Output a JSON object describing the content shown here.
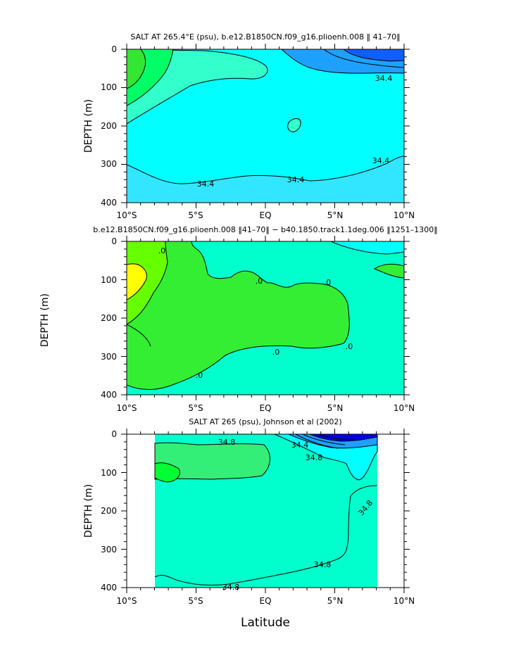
{
  "figure": {
    "xlabel": "Latitude"
  },
  "chart_data": [
    {
      "type": "contour",
      "title": "SALT AT 265.4°E (psu), b.e12.B1850CN.f09_g16.plioenh.008 ‖ 41–70‖",
      "xlabel": "Latitude",
      "ylabel": "DEPTH (m)",
      "xlim": [
        -10,
        10
      ],
      "ylim": [
        400,
        0
      ],
      "xticks": [
        "10°S",
        "5°S",
        "EQ",
        "5°N",
        "10°N"
      ],
      "yticks": [
        "0",
        "100",
        "200",
        "300",
        "400"
      ],
      "contour_labels": [
        "34.4",
        "34.4",
        "34.4",
        "34.4"
      ],
      "colors": {
        "background": "#00ffff",
        "deep": "#33e6ff",
        "low": "#1ea0ff",
        "lower": "#0f5fff",
        "high": "#00ff66",
        "higher": "#33e633",
        "mid": "#33ffcc"
      }
    },
    {
      "type": "contour",
      "title": "b.e12.B1850CN.f09_g16.plioenh.008 ‖41–70‖ − b40.1850.track1.1deg.006 ‖1251–1300‖",
      "xlabel": "Latitude",
      "ylabel": "DEPTH (m)",
      "xlim": [
        -10,
        10
      ],
      "ylim": [
        400,
        0
      ],
      "xticks": [
        "10°S",
        "5°S",
        "EQ",
        "5°N",
        "10°N"
      ],
      "yticks": [
        "0",
        "100",
        "200",
        "300",
        "400"
      ],
      "contour_labels": [
        ".0",
        ".0",
        ".0",
        ".0",
        ".0",
        ".0"
      ],
      "colors": {
        "background": "#00ffcc",
        "positive": "#33ee33",
        "strong": "#66ff00",
        "max": "#ffff00",
        "negative": "#00ffff"
      }
    },
    {
      "type": "contour",
      "title": "SALT AT 265 (psu), Johnson et al (2002)",
      "xlabel": "Latitude",
      "ylabel": "DEPTH (m)",
      "xlim": [
        -10,
        10
      ],
      "ylim": [
        400,
        0
      ],
      "data_xrange": [
        -8,
        8
      ],
      "xticks": [
        "10°S",
        "5°S",
        "EQ",
        "5°N",
        "10°N"
      ],
      "yticks": [
        "0",
        "100",
        "200",
        "300",
        "400"
      ],
      "contour_labels": [
        "34.8",
        "34.4",
        "34.8",
        "34.8",
        "34.8",
        "34.8"
      ],
      "colors": {
        "background": "#00ffcc",
        "fresh": "#33ee77",
        "freshest": "#00ff33",
        "low": "#00ffff",
        "lower": "#1ea0ff",
        "lowest": "#0000ee"
      }
    }
  ]
}
